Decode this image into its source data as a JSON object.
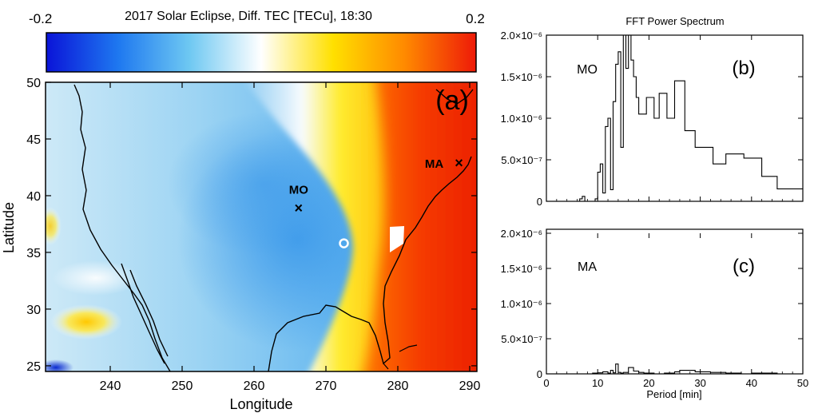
{
  "colorbar": {
    "title": "2017 Solar Eclipse, Diff. TEC [TECu], 18:30",
    "min_label": "-0.2",
    "max_label": "0.2",
    "range": [
      -0.2,
      0.2
    ],
    "colors": [
      "#0a14d8",
      "#1e78f0",
      "#6ec8f2",
      "#ffffff",
      "#ffe000",
      "#ff8a00",
      "#ee1a08"
    ]
  },
  "chart_data": [
    {
      "type": "heatmap",
      "panel_label": "(a)",
      "xlabel": "Longitude",
      "ylabel": "Latitude",
      "xlim": [
        231,
        291
      ],
      "ylim": [
        24.5,
        50
      ],
      "x_ticks": [
        240,
        250,
        260,
        270,
        280,
        290
      ],
      "y_ticks": [
        25,
        30,
        35,
        40,
        45,
        50
      ],
      "markers": [
        {
          "label": "MO",
          "lon": 266.2,
          "lat": 38.9
        },
        {
          "label": "MA",
          "lon": 288.5,
          "lat": 42.9
        }
      ],
      "circle_marker": {
        "lon": 272.5,
        "lat": 35.8
      }
    },
    {
      "type": "line",
      "title": "FFT Power Spectrum",
      "panel_label": "(b)",
      "series_label": "MO",
      "xlim": [
        0,
        50
      ],
      "ylim": [
        0,
        2e-06
      ],
      "y_tick_labels": [
        "0",
        "5.0×10⁻⁷",
        "1.0×10⁻⁶",
        "1.5×10⁻⁶",
        "2.0×10⁻⁶"
      ],
      "y_tick_values": [
        0,
        5e-07,
        1e-06,
        1.5e-06,
        2e-06
      ],
      "x": [
        6.0,
        6.5,
        7.0,
        7.5,
        9.5,
        10.0,
        10.5,
        11.0,
        11.5,
        12.0,
        12.5,
        13.0,
        13.5,
        14.0,
        14.5,
        15.0,
        15.5,
        16.0,
        16.5,
        17.0,
        17.5,
        18.0,
        19.5,
        21.0,
        22.0,
        23.5,
        25.0,
        27.0,
        29.0,
        32.5,
        35.0,
        38.5,
        42.0,
        45.0,
        50.0
      ],
      "y": [
        0.0,
        3e-08,
        6e-08,
        0.0,
        3e-08,
        3.5e-07,
        4.5e-07,
        1e-07,
        9e-07,
        1e-06,
        1.4e-07,
        1.2e-06,
        1.65e-06,
        1.8e-06,
        6.5e-07,
        2e-06,
        1.6e-06,
        2e-06,
        1.7e-06,
        1.5e-06,
        1.25e-06,
        1.05e-06,
        1.25e-06,
        1e-06,
        1.3e-06,
        1e-06,
        1.45e-06,
        8.5e-07,
        6.5e-07,
        4.5e-07,
        5.7e-07,
        5.2e-07,
        3e-07,
        1.5e-07,
        1.5e-07
      ]
    },
    {
      "type": "line",
      "panel_label": "(c)",
      "series_label": "MA",
      "xlabel": "Period [min]",
      "xlim": [
        0,
        50
      ],
      "ylim": [
        0,
        2e-06
      ],
      "x_ticks": [
        0,
        10,
        20,
        30,
        40,
        50
      ],
      "y_tick_labels": [
        "0",
        "5.0×10⁻⁷",
        "1.0×10⁻⁶",
        "1.5×10⁻⁶",
        "2.0×10⁻⁶"
      ],
      "y_tick_values": [
        0,
        5e-07,
        1e-06,
        1.5e-06,
        2e-06
      ],
      "x": [
        6.0,
        9.0,
        10.0,
        11.0,
        12.0,
        12.5,
        13.0,
        13.5,
        14.0,
        14.5,
        15.0,
        16.0,
        17.0,
        18.0,
        19.0,
        21.0,
        23.0,
        25.0,
        26.0,
        29.0,
        32.0,
        35.0,
        38.0,
        40.0,
        45.0,
        50.0
      ],
      "y": [
        0.0,
        1e-08,
        1.5e-08,
        3e-08,
        1e-08,
        5e-08,
        1.5e-08,
        1.4e-07,
        2e-08,
        1e-08,
        2e-08,
        9e-08,
        4e-08,
        2e-08,
        1e-08,
        0.0,
        1e-08,
        3e-08,
        5e-08,
        3e-08,
        2e-08,
        1e-08,
        0.0,
        1e-08,
        0.0,
        0.0
      ]
    }
  ]
}
